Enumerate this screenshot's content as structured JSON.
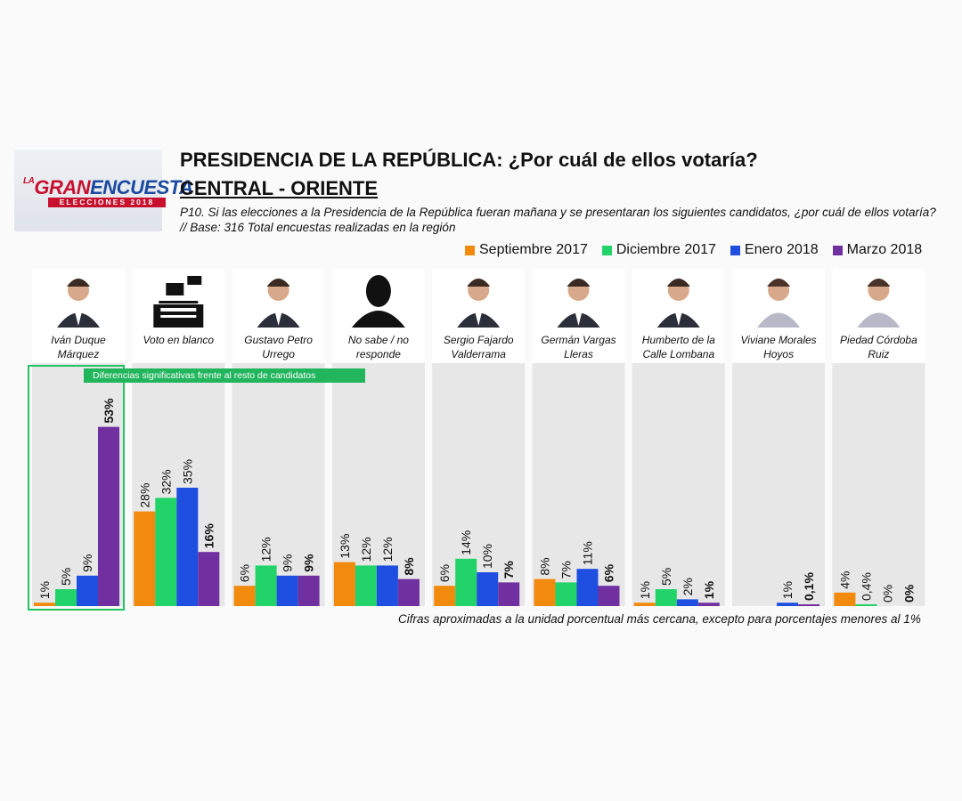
{
  "logo": {
    "la": "LA",
    "gran": "GRAN",
    "encuesta": "ENCUESTA",
    "band": "ELECCIONES 2018"
  },
  "title": "PRESIDENCIA DE LA REPÚBLICA: ¿Por cuál de ellos votaría?",
  "subtitle": "CENTRAL - ORIENTE",
  "question": "P10. Si las elecciones a la Presidencia de la República fueran mañana y se presentaran los siguientes candidatos, ¿por cuál de ellos votaría?  // Base: 316 Total encuestas realizadas en la región",
  "callout": "Diferencias significativas frente al resto de candidatos",
  "note": "Cifras aproximadas a la unidad porcentual más cercana, excepto para porcentajes menores al 1%",
  "colors": {
    "sep": "#f28a0d",
    "dic": "#22d369",
    "ene": "#1f4fe0",
    "mar": "#7030a0"
  },
  "chart_data": {
    "type": "bar",
    "categories": [
      [
        "Iván Duque",
        "Márquez"
      ],
      [
        "Voto en blanco"
      ],
      [
        "Gustavo Petro",
        "Urrego"
      ],
      [
        "No sabe / no",
        "responde"
      ],
      [
        "Sergio Fajardo",
        "Valderrama"
      ],
      [
        "Germán Vargas",
        "Lleras"
      ],
      [
        "Humberto de la",
        "Calle Lombana"
      ],
      [
        "Viviane Morales",
        "Hoyos"
      ],
      [
        "Piedad Córdoba",
        "Ruiz"
      ]
    ],
    "icons": [
      "man-photo",
      "ballot-box-icon",
      "man-photo",
      "silhouette-icon",
      "man-photo",
      "man-photo",
      "man-photo",
      "woman-photo",
      "woman-photo"
    ],
    "series": [
      {
        "name": "Septiembre 2017",
        "color": "#f28a0d",
        "values": [
          1,
          28,
          6,
          13,
          6,
          8,
          1,
          null,
          4
        ],
        "labels": [
          "1%",
          "28%",
          "6%",
          "13%",
          "6%",
          "8%",
          "1%",
          "",
          "4%"
        ]
      },
      {
        "name": "Diciembre 2017",
        "color": "#22d369",
        "values": [
          5,
          32,
          12,
          12,
          14,
          7,
          5,
          null,
          0.4
        ],
        "labels": [
          "5%",
          "32%",
          "12%",
          "12%",
          "14%",
          "7%",
          "5%",
          "",
          "0,4%"
        ]
      },
      {
        "name": "Enero 2018",
        "color": "#1f4fe0",
        "values": [
          9,
          35,
          9,
          12,
          10,
          11,
          2,
          1,
          0
        ],
        "labels": [
          "9%",
          "35%",
          "9%",
          "12%",
          "10%",
          "11%",
          "2%",
          "1%",
          "0%"
        ]
      },
      {
        "name": "Marzo 2018",
        "color": "#7030a0",
        "values": [
          53,
          16,
          9,
          8,
          7,
          6,
          1,
          0.1,
          0
        ],
        "labels": [
          "53%",
          "16%",
          "9%",
          "8%",
          "7%",
          "6%",
          "1%",
          "0,1%",
          "0%"
        ]
      }
    ],
    "ylim": [
      0,
      55
    ],
    "grid": false,
    "legend_position": "top-right"
  }
}
